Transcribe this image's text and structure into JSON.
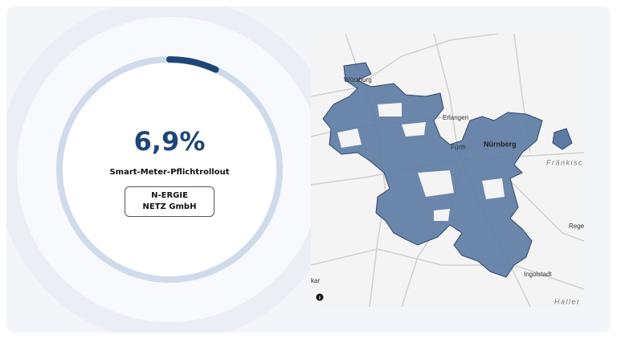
{
  "progress": {
    "value": 6.9,
    "value_label": "6,9%",
    "label": "Smart-Meter-Pflichtrollout",
    "operator": "N-ERGIE NETZ GmbH"
  },
  "map": {
    "labels": [
      "Würzburg",
      "Erlangen",
      "Fürth",
      "Nürnberg",
      "Fränkisc",
      "Rege",
      "Ingolstadt",
      "Haller",
      "kar"
    ]
  }
}
